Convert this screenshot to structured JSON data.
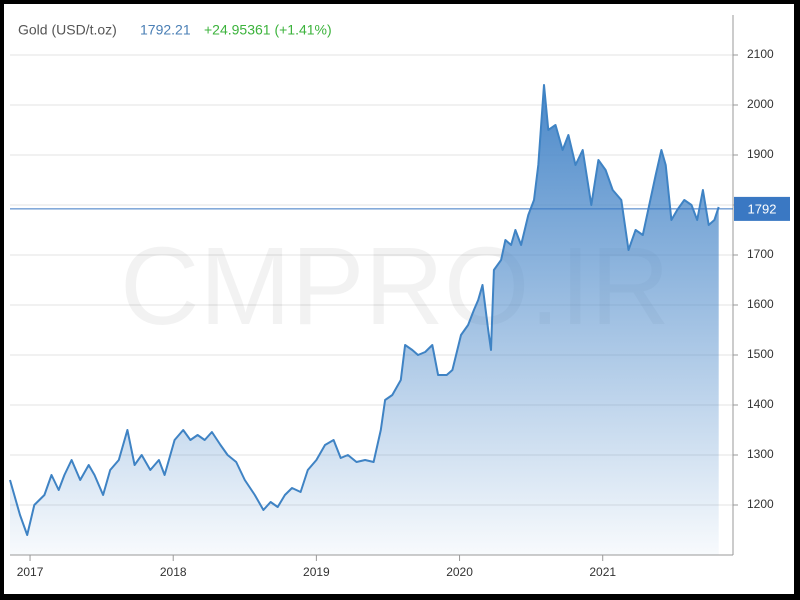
{
  "chart_data": {
    "type": "area",
    "title": "Gold (USD/t.oz)",
    "price": 1792.21,
    "price_text": "1792.21",
    "change_text": "+24.95361 (+1.41%)",
    "price_tag": "1792",
    "watermark": "CMPRO.IR",
    "line_color": "#3f83c4",
    "fill_color": "#4a88c9",
    "tag_color": "#3a78c3",
    "grid": true,
    "xlim": [
      2016.86,
      2021.91
    ],
    "xticks": [
      2017,
      2018,
      2019,
      2020,
      2021
    ],
    "ylim": [
      1100,
      2180
    ],
    "yticks": [
      1200,
      1300,
      1400,
      1500,
      1600,
      1700,
      1800,
      1900,
      2000,
      2100
    ],
    "x": [
      2016.86,
      2016.93,
      2016.98,
      2017.03,
      2017.1,
      2017.15,
      2017.2,
      2017.24,
      2017.29,
      2017.35,
      2017.41,
      2017.45,
      2017.51,
      2017.56,
      2017.62,
      2017.68,
      2017.73,
      2017.78,
      2017.84,
      2017.9,
      2017.94,
      2018.01,
      2018.07,
      2018.12,
      2018.17,
      2018.22,
      2018.27,
      2018.33,
      2018.38,
      2018.44,
      2018.5,
      2018.57,
      2018.63,
      2018.68,
      2018.73,
      2018.78,
      2018.83,
      2018.89,
      2018.94,
      2019.0,
      2019.06,
      2019.12,
      2019.17,
      2019.22,
      2019.28,
      2019.34,
      2019.4,
      2019.45,
      2019.48,
      2019.53,
      2019.59,
      2019.62,
      2019.67,
      2019.71,
      2019.76,
      2019.81,
      2019.85,
      2019.91,
      2019.95,
      2020.01,
      2020.06,
      2020.1,
      2020.13,
      2020.16,
      2020.2,
      2020.22,
      2020.24,
      2020.29,
      2020.32,
      2020.36,
      2020.39,
      2020.43,
      2020.48,
      2020.52,
      2020.55,
      2020.59,
      2020.62,
      2020.67,
      2020.72,
      2020.76,
      2020.81,
      2020.86,
      2020.92,
      2020.97,
      2021.02,
      2021.07,
      2021.13,
      2021.18,
      2021.23,
      2021.28,
      2021.34,
      2021.37,
      2021.41,
      2021.44,
      2021.48,
      2021.52,
      2021.57,
      2021.62,
      2021.66,
      2021.7,
      2021.74,
      2021.78,
      2021.81
    ],
    "values": [
      1250,
      1180,
      1140,
      1200,
      1220,
      1260,
      1230,
      1260,
      1290,
      1250,
      1280,
      1260,
      1220,
      1270,
      1290,
      1350,
      1280,
      1300,
      1270,
      1290,
      1260,
      1330,
      1350,
      1330,
      1340,
      1330,
      1346,
      1320,
      1300,
      1286,
      1250,
      1220,
      1190,
      1206,
      1196,
      1220,
      1234,
      1226,
      1270,
      1290,
      1320,
      1330,
      1294,
      1300,
      1286,
      1290,
      1286,
      1350,
      1410,
      1420,
      1450,
      1520,
      1510,
      1500,
      1506,
      1520,
      1460,
      1460,
      1470,
      1540,
      1560,
      1590,
      1610,
      1640,
      1550,
      1510,
      1670,
      1690,
      1730,
      1720,
      1750,
      1720,
      1780,
      1810,
      1880,
      2040,
      1950,
      1960,
      1910,
      1940,
      1880,
      1910,
      1800,
      1890,
      1870,
      1830,
      1810,
      1710,
      1750,
      1740,
      1820,
      1860,
      1910,
      1880,
      1770,
      1790,
      1810,
      1800,
      1770,
      1830,
      1760,
      1770,
      1796
    ]
  }
}
